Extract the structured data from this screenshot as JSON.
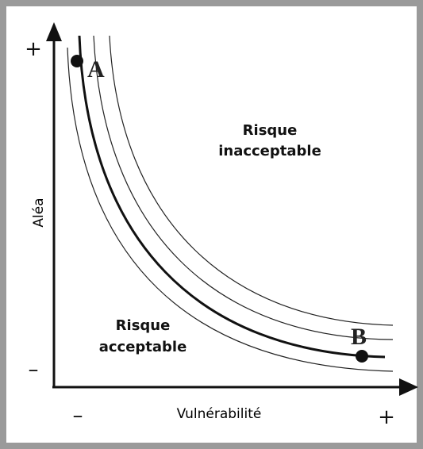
{
  "y_axis": {
    "label": "Aléa",
    "max": "+",
    "min": "–"
  },
  "x_axis": {
    "label": "Vulnérabilité",
    "min": "–",
    "max": "+"
  },
  "regions": [
    {
      "lines": [
        "Risque",
        "inacceptable"
      ]
    },
    {
      "lines": [
        "Risque",
        "acceptable"
      ]
    }
  ],
  "points": [
    {
      "label": "A"
    },
    {
      "label": "B"
    }
  ]
}
